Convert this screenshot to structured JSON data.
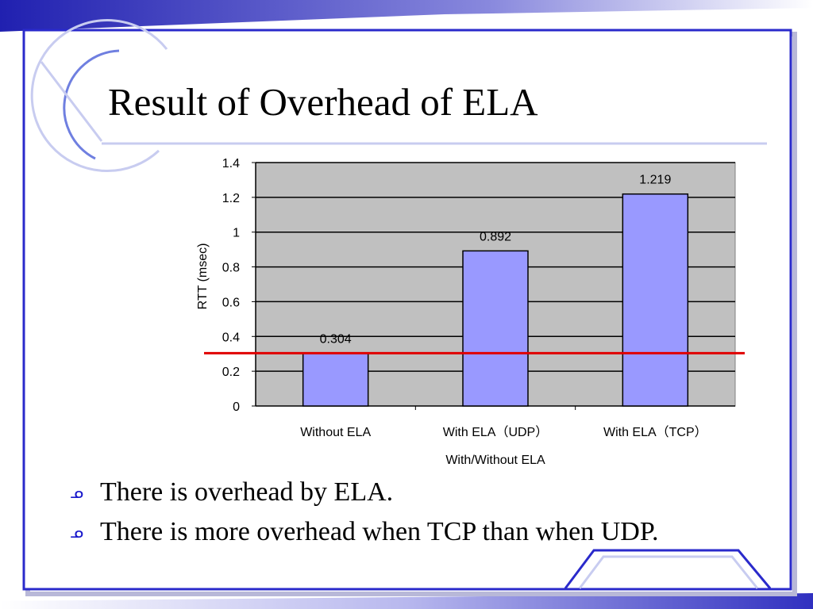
{
  "slide": {
    "title": "Result of Overhead of ELA",
    "bullets": [
      "There is overhead by ELA.",
      "There is more overhead when TCP than when UDP."
    ],
    "bullet_icon": "swash-bullet-icon",
    "colors": {
      "frame": "#2a2acb",
      "accent_line": "#c8ccf0",
      "bullet": "#1a1acc"
    }
  },
  "chart_data": {
    "type": "bar",
    "categories": [
      "Without ELA",
      "With ELA（UDP）",
      "With ELA（TCP）"
    ],
    "values": [
      0.304,
      0.892,
      1.219
    ],
    "data_labels": [
      "0.304",
      "0.892",
      "1.219"
    ],
    "title": "",
    "xlabel": "With/Without ELA",
    "ylabel": "RTT (msec)",
    "ylim": [
      0,
      1.4
    ],
    "yticks": [
      0,
      0.2,
      0.4,
      0.6,
      0.8,
      1,
      1.2,
      1.4
    ],
    "ytick_labels": [
      "0",
      "0.2",
      "0.4",
      "0.6",
      "0.8",
      "1",
      "1.2",
      "1.4"
    ],
    "grid": true,
    "reference_line": {
      "value": 0.304,
      "color": "#e00000"
    },
    "colors": {
      "bar": "#9999ff",
      "plot_background": "#c0c0c0"
    }
  }
}
